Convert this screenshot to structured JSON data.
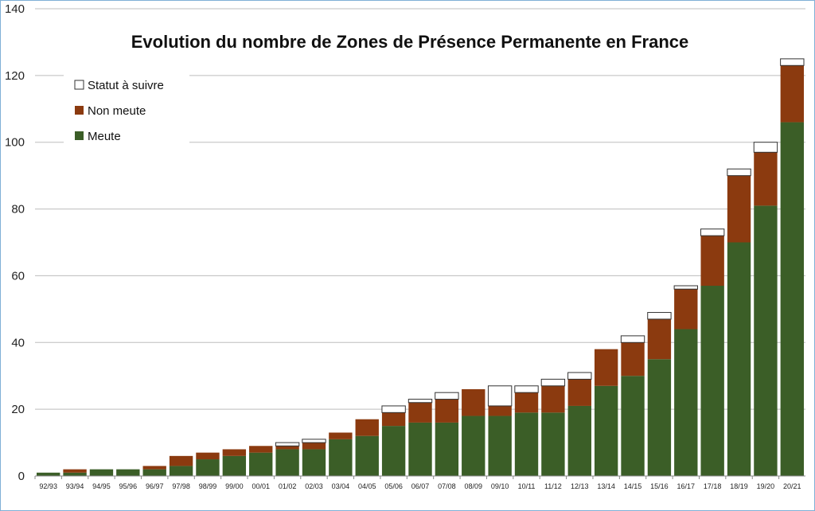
{
  "chart_data": {
    "type": "bar",
    "stacked": true,
    "title": "Evolution du nombre de Zones de Présence Permanente en France",
    "xlabel": "",
    "ylabel": "",
    "ylim": [
      0,
      140
    ],
    "yticks": [
      0,
      20,
      40,
      60,
      80,
      100,
      120,
      140
    ],
    "grid": true,
    "legend_position": "top-left",
    "categories": [
      "92/93",
      "93/94",
      "94/95",
      "95/96",
      "96/97",
      "97/98",
      "98/99",
      "99/00",
      "00/01",
      "01/02",
      "02/03",
      "03/04",
      "04/05",
      "05/06",
      "06/07",
      "07/08",
      "08/09",
      "09/10",
      "10/11",
      "11/12",
      "12/13",
      "13/14",
      "14/15",
      "15/16",
      "16/17",
      "17/18",
      "18/19",
      "19/20",
      "20/21"
    ],
    "series": [
      {
        "name": "Meute",
        "color": "#3b5e27",
        "values": [
          1,
          1,
          2,
          2,
          2,
          3,
          5,
          6,
          7,
          8,
          8,
          11,
          12,
          15,
          16,
          16,
          18,
          18,
          19,
          19,
          21,
          27,
          30,
          35,
          44,
          57,
          70,
          81,
          106
        ]
      },
      {
        "name": "Non meute",
        "color": "#8b3a0f",
        "values": [
          0,
          1,
          0,
          0,
          1,
          3,
          2,
          2,
          2,
          1,
          2,
          2,
          5,
          4,
          6,
          7,
          8,
          3,
          6,
          8,
          8,
          11,
          10,
          12,
          12,
          15,
          20,
          16,
          17
        ]
      },
      {
        "name": "Statut à suivre",
        "color": "#ffffff",
        "values": [
          0,
          0,
          0,
          0,
          0,
          0,
          0,
          0,
          0,
          1,
          1,
          0,
          0,
          2,
          1,
          2,
          0,
          6,
          2,
          2,
          2,
          0,
          2,
          2,
          1,
          2,
          2,
          3,
          2
        ]
      }
    ]
  }
}
